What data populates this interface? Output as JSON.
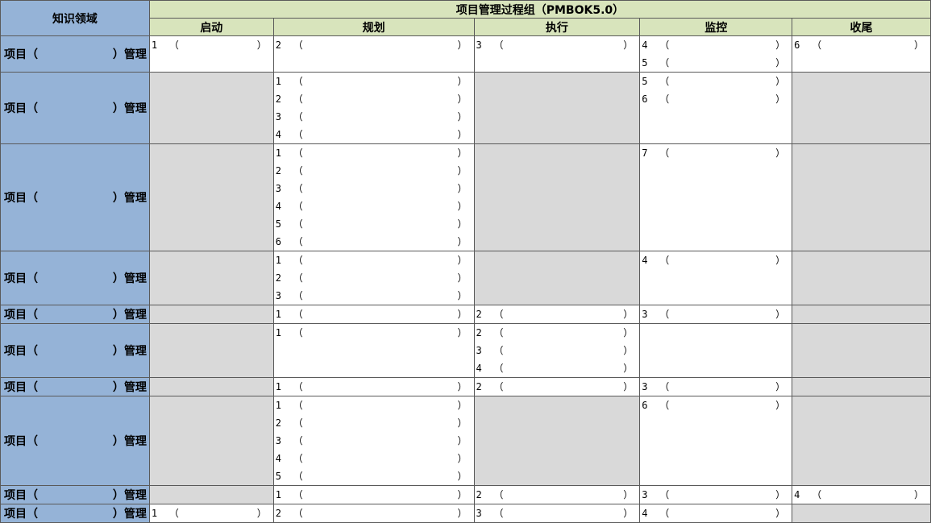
{
  "header": {
    "knowledge_area": "知识领域",
    "process_groups_title": "项目管理过程组（PMBOK5.0）",
    "groups": [
      "启动",
      "规划",
      "执行",
      "监控",
      "收尾"
    ]
  },
  "row_label": {
    "prefix": "项目（",
    "suffix": "）管理"
  },
  "blank": {
    "open": "（",
    "close": "）"
  },
  "rows": [
    {
      "initiating": [
        "1"
      ],
      "planning": [
        "2"
      ],
      "executing": [
        "3"
      ],
      "monitoring": [
        "4",
        "5"
      ],
      "closing": [
        "6"
      ]
    },
    {
      "initiating": null,
      "planning": [
        "1",
        "2",
        "3",
        "4"
      ],
      "executing": null,
      "monitoring": [
        "5",
        "6"
      ],
      "closing": null
    },
    {
      "initiating": null,
      "planning": [
        "1",
        "2",
        "3",
        "4",
        "5",
        "6"
      ],
      "executing": null,
      "monitoring": [
        "7"
      ],
      "closing": null
    },
    {
      "initiating": null,
      "planning": [
        "1",
        "2",
        "3"
      ],
      "executing": null,
      "monitoring": [
        "4"
      ],
      "closing": null
    },
    {
      "initiating": null,
      "planning": [
        "1"
      ],
      "executing": [
        "2"
      ],
      "monitoring": [
        "3"
      ],
      "closing": null
    },
    {
      "initiating": null,
      "planning": [
        "1"
      ],
      "executing": [
        "2",
        "3",
        "4"
      ],
      "monitoring": [],
      "closing": null
    },
    {
      "initiating": null,
      "planning": [
        "1"
      ],
      "executing": [
        "2"
      ],
      "monitoring": [
        "3"
      ],
      "closing": null
    },
    {
      "initiating": null,
      "planning": [
        "1",
        "2",
        "3",
        "4",
        "5"
      ],
      "executing": null,
      "monitoring": [
        "6"
      ],
      "closing": null
    },
    {
      "initiating": null,
      "planning": [
        "1"
      ],
      "executing": [
        "2"
      ],
      "monitoring": [
        "3"
      ],
      "closing": [
        "4"
      ]
    },
    {
      "initiating": [
        "1"
      ],
      "planning": [
        "2"
      ],
      "executing": [
        "3"
      ],
      "monitoring": [
        "4"
      ],
      "closing": null
    }
  ]
}
